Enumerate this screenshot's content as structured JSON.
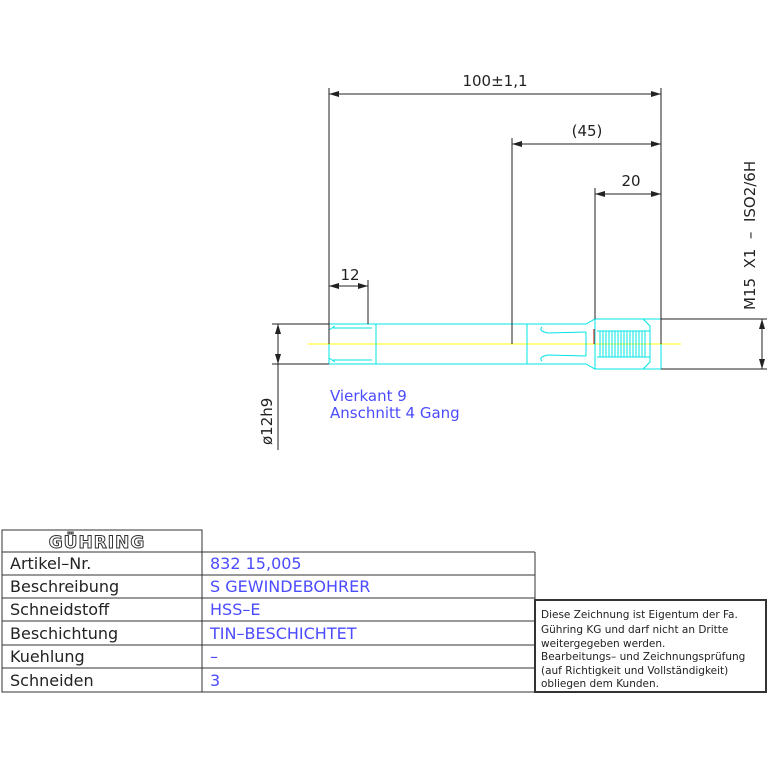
{
  "drawing": {
    "dimensions": {
      "overall_length": "100±1,1",
      "thread_section": "(45)",
      "thread_length": "20",
      "square_length": "12",
      "shank_diameter": "ø12h9",
      "thread_spec": "M15  X1  –  ISO2/6H"
    },
    "notes": [
      "Vierkant 9",
      "Anschnitt 4 Gang"
    ],
    "colors": {
      "outline": "#00e5e5",
      "dimension": "#222222",
      "centerline": "#ffff00",
      "text": "#4b4bff",
      "edge": "#cc0000"
    }
  },
  "title_block": {
    "logo": "GÜHRING",
    "rows": [
      {
        "label": "Artikel–Nr.",
        "value": "832 15,005"
      },
      {
        "label": "Beschreibung",
        "value": "S GEWINDEBOHRER"
      },
      {
        "label": "Schneidstoff",
        "value": "HSS–E"
      },
      {
        "label": "Beschichtung",
        "value": "TIN–BESCHICHTET"
      },
      {
        "label": "Kuehlung",
        "value": "–"
      },
      {
        "label": "Schneiden",
        "value": "3"
      }
    ],
    "disclaimer": [
      "Diese Zeichnung ist Eigentum der Fa.",
      "Gühring KG und darf nicht an Dritte",
      "weitergegeben werden.",
      "Bearbeitungs– und Zeichnungsprüfung",
      "(auf Richtigkeit und Vollständigkeit)",
      "obliegen dem Kunden."
    ]
  }
}
